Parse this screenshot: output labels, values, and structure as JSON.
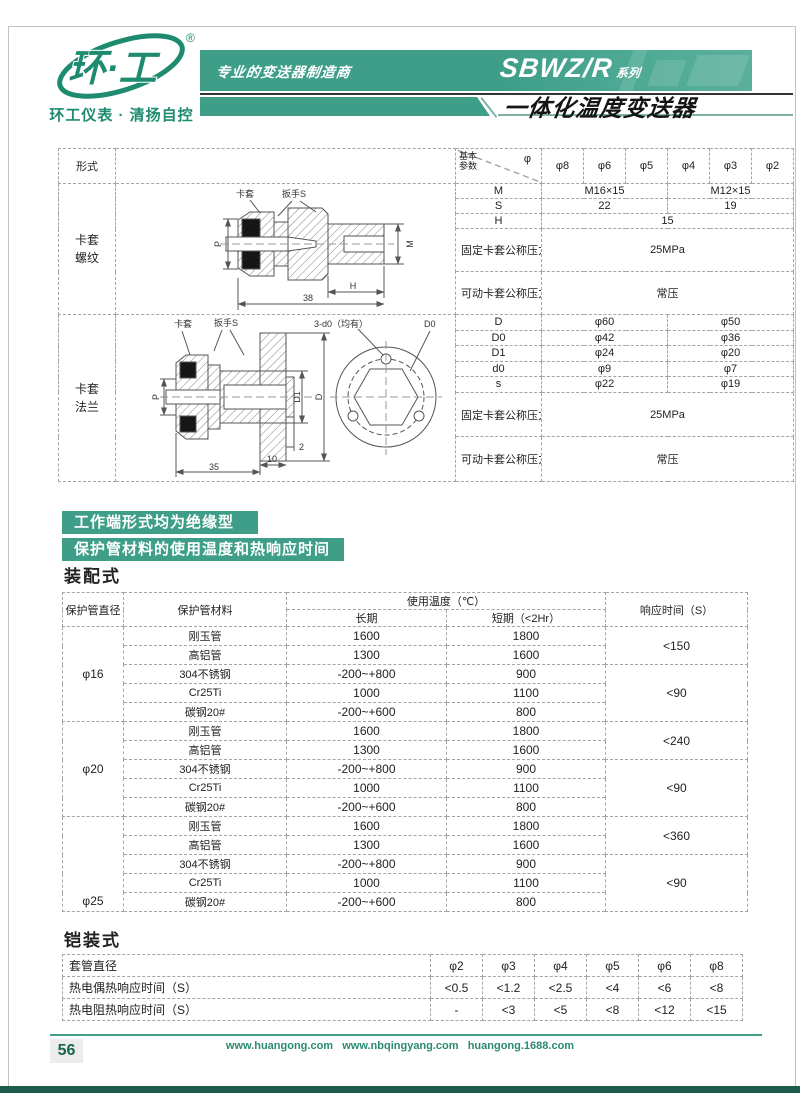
{
  "page": {
    "accent": "#3E9E88",
    "accent_dark": "#1B5B4B",
    "page_number": "56",
    "footer_links": "www.huangong.com   www.nbqingyang.com   huangong.1688.com"
  },
  "header": {
    "logo_text": "环·工",
    "logo_reg": "®",
    "logo_caption": "环工仪表 · 清扬自控",
    "slogan": "专业的变送器制造商",
    "series_name": "SBWZ/R",
    "series_suffix": "系列",
    "product_title": "一体化温度变送器"
  },
  "spec_table": {
    "header": {
      "form": "形式",
      "diag_tl": "基本\n参数",
      "diag_tr": "φ",
      "cols": [
        "φ8",
        "φ6",
        "φ5",
        "φ4",
        "φ3",
        "φ2"
      ]
    },
    "section1": {
      "row_label": "卡套\n螺纹",
      "rows": [
        {
          "label": "M",
          "cells": [
            {
              "t": "M16×15",
              "cs": 3
            },
            {
              "t": "M12×15",
              "cs": 3
            }
          ]
        },
        {
          "label": "S",
          "cells": [
            {
              "t": "22",
              "cs": 3
            },
            {
              "t": "19",
              "cs": 3
            }
          ]
        },
        {
          "label": "H",
          "cells": [
            {
              "t": "15",
              "cs": 6
            }
          ]
        },
        {
          "label": "固定卡套公称压力",
          "left": true,
          "tall": true,
          "cells": [
            {
              "t": "25MPa",
              "cs": 6
            }
          ]
        },
        {
          "label": "可动卡套公称压力",
          "left": true,
          "tall": true,
          "cells": [
            {
              "t": "常压",
              "cs": 6
            }
          ]
        }
      ]
    },
    "section2": {
      "row_label": "卡套\n法兰",
      "rows": [
        {
          "label": "D",
          "cells": [
            {
              "t": "φ60",
              "cs": 3
            },
            {
              "t": "φ50",
              "cs": 3
            }
          ]
        },
        {
          "label": "D0",
          "cells": [
            {
              "t": "φ42",
              "cs": 3
            },
            {
              "t": "φ36",
              "cs": 3
            }
          ]
        },
        {
          "label": "D1",
          "cells": [
            {
              "t": "φ24",
              "cs": 3
            },
            {
              "t": "φ20",
              "cs": 3
            }
          ]
        },
        {
          "label": "d0",
          "cells": [
            {
              "t": "φ9",
              "cs": 3
            },
            {
              "t": "φ7",
              "cs": 3
            }
          ]
        },
        {
          "label": "s",
          "cells": [
            {
              "t": "φ22",
              "cs": 3
            },
            {
              "t": "φ19",
              "cs": 3
            }
          ]
        },
        {
          "label": "固定卡套公称压力",
          "left": true,
          "tall": true,
          "cells": [
            {
              "t": "25MPa",
              "cs": 6
            }
          ]
        },
        {
          "label": "可动卡套公称压力",
          "left": true,
          "tall": true,
          "cells": [
            {
              "t": "常压",
              "cs": 6
            }
          ]
        }
      ]
    },
    "d1": {
      "ferrule": "卡套",
      "wrench": "扳手S",
      "p": "P",
      "m": "M",
      "h": "H",
      "total": "38"
    },
    "d2": {
      "ferrule": "卡套",
      "wrench": "扳手S",
      "p": "P",
      "d1": "D1",
      "d": "D",
      "dim2": "2",
      "dim10": "10",
      "dim35": "35",
      "holes": "3-d0（均有）",
      "d0": "D0"
    }
  },
  "section_bars": {
    "bar1": "工作端形式均为绝缘型",
    "bar2": "保护管材料的使用温度和热响应时间"
  },
  "assembly": {
    "title": "装配式",
    "headers": {
      "diameter": "保护管直径",
      "material": "保护管材料",
      "temp": "使用温度（℃）",
      "long": "长期",
      "short": "短期（<2Hr）",
      "response": "响应时间（S）"
    },
    "groups": [
      {
        "diameter": "φ16",
        "align": "middle",
        "rows": [
          [
            "刚玉管",
            "1600",
            "1800"
          ],
          [
            "高铝管",
            "1300",
            "1600"
          ],
          [
            "304不锈钢",
            "-200~+800",
            "900"
          ],
          [
            "Cr25Ti",
            "1000",
            "1100"
          ],
          [
            "碳钢20#",
            "-200~+600",
            "800"
          ]
        ],
        "responses": [
          {
            "t": "<150",
            "rs": 2
          },
          {
            "t": "<90",
            "rs": 3
          }
        ]
      },
      {
        "diameter": "φ20",
        "align": "middle",
        "rows": [
          [
            "刚玉管",
            "1600",
            "1800"
          ],
          [
            "高铝管",
            "1300",
            "1600"
          ],
          [
            "304不锈钢",
            "-200~+800",
            "900"
          ],
          [
            "Cr25Ti",
            "1000",
            "1100"
          ],
          [
            "碳钢20#",
            "-200~+600",
            "800"
          ]
        ],
        "responses": [
          {
            "t": "<240",
            "rs": 2
          },
          {
            "t": "<90",
            "rs": 3
          }
        ]
      },
      {
        "diameter": "φ25",
        "align": "bottom",
        "rows": [
          [
            "刚玉管",
            "1600",
            "1800"
          ],
          [
            "高铝管",
            "1300",
            "1600"
          ],
          [
            "304不锈钢",
            "-200~+800",
            "900"
          ],
          [
            "Cr25Ti",
            "1000",
            "1100"
          ],
          [
            "碳钢20#",
            "-200~+600",
            "800"
          ]
        ],
        "responses": [
          {
            "t": "<360",
            "rs": 2
          },
          {
            "t": "<90",
            "rs": 3
          }
        ]
      }
    ]
  },
  "armored": {
    "title": "铠装式",
    "rows": [
      {
        "label": "套管直径",
        "values": [
          "φ2",
          "φ3",
          "φ4",
          "φ5",
          "φ6",
          "φ8"
        ]
      },
      {
        "label": "热电偶热响应时间（S）",
        "values": [
          "<0.5",
          "<1.2",
          "<2.5",
          "<4",
          "<6",
          "<8"
        ]
      },
      {
        "label": "热电阻热响应时间（S）",
        "values": [
          "-",
          "<3",
          "<5",
          "<8",
          "<12",
          "<15"
        ]
      }
    ]
  }
}
